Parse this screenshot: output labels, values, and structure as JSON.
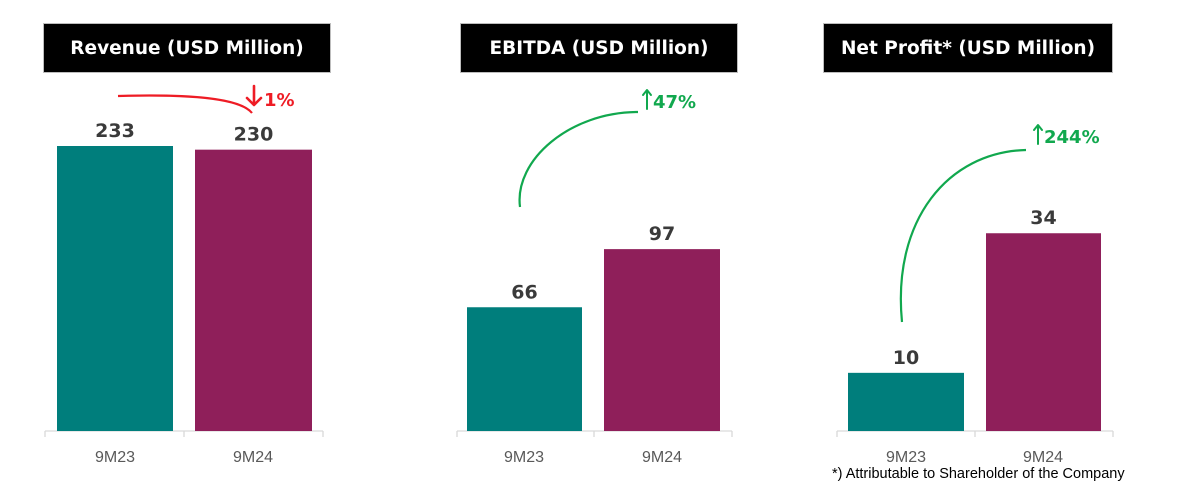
{
  "colors": {
    "prev": "#007E7C",
    "curr": "#8F1F5A",
    "down": "#EE1C25",
    "up": "#11A84E"
  },
  "footnote": "*) Attributable to Shareholder of the Company",
  "chart_data": [
    {
      "type": "bar",
      "title": "Revenue (USD Million)",
      "categories": [
        "9M23",
        "9M24"
      ],
      "values": [
        233,
        230
      ],
      "data_labels": [
        "233",
        "230"
      ],
      "change": {
        "label": "1%",
        "direction": "down"
      },
      "ylim": [
        0,
        233
      ]
    },
    {
      "type": "bar",
      "title": "EBITDA (USD Million)",
      "categories": [
        "9M23",
        "9M24"
      ],
      "values": [
        66,
        97
      ],
      "data_labels": [
        "66",
        "97"
      ],
      "change": {
        "label": "47%",
        "direction": "up"
      },
      "ylim": [
        0,
        152
      ]
    },
    {
      "type": "bar",
      "title": "Net Profit* (USD Million)",
      "categories": [
        "9M23",
        "9M24"
      ],
      "values": [
        10,
        34
      ],
      "data_labels": [
        "10",
        "34"
      ],
      "change": {
        "label": "244%",
        "direction": "up"
      },
      "ylim": [
        0,
        49
      ]
    }
  ]
}
